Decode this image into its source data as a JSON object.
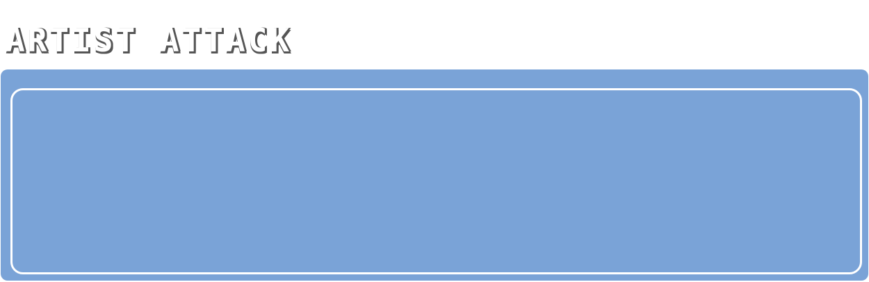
{
  "header": {
    "title": "ARTIST ATTACK"
  },
  "colors": {
    "panel_background": "#7aa3d7",
    "panel_border": "#ffffff",
    "title_fill": "#ffffff",
    "title_outline": "#555555"
  }
}
